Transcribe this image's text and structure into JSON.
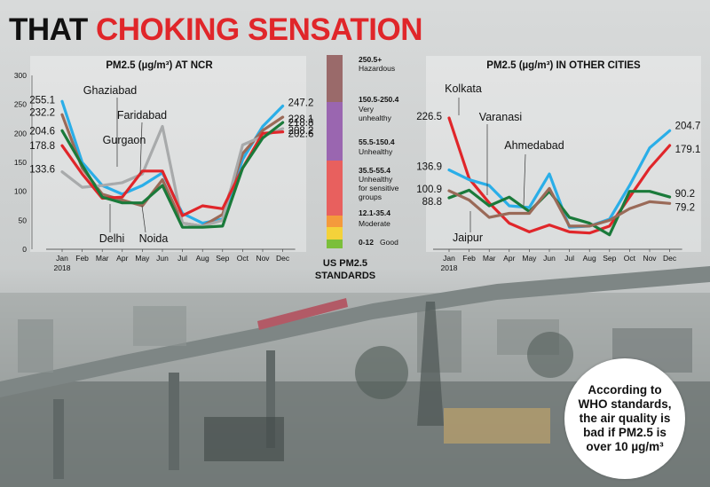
{
  "headline": {
    "part1": "THAT ",
    "part2": "CHOKING SENSATION"
  },
  "who_note": "According to WHO standards, the air quality is bad if PM2.5 is over 10 µg/m³",
  "colors": {
    "accent_red": "#e0262a",
    "background_smog": "#cdd0d0"
  },
  "chart_data": [
    {
      "type": "line",
      "title": "PM2.5 (µg/m³) AT NCR",
      "y_ticks": [
        "300",
        "250",
        "200",
        "150",
        "100",
        "50",
        "0"
      ],
      "ylim": [
        0,
        300
      ],
      "categories": [
        "Jan\n2018",
        "Feb",
        "Mar",
        "Apr",
        "May",
        "Jun",
        "Jul",
        "Aug",
        "Sep",
        "Oct",
        "Nov",
        "Dec"
      ],
      "series": [
        {
          "name": "Ghaziabad",
          "color": "#2aaee8",
          "values": [
            255.1,
            150,
            110,
            95,
            110,
            132,
            62,
            45,
            52,
            155,
            212,
            247.2
          ],
          "start_label": "255.1",
          "end_label": "247.2"
        },
        {
          "name": "Faridabad",
          "color": "#9a6a58",
          "values": [
            232.2,
            140,
            95,
            85,
            75,
            120,
            45,
            40,
            60,
            165,
            205,
            228.1
          ],
          "start_label": "232.2",
          "end_label": "228.1"
        },
        {
          "name": "Gurgaon",
          "color": "#a8aaab",
          "values": [
            133.6,
            107,
            110,
            115,
            130,
            212,
            45,
            40,
            50,
            180,
            195,
            208.2
          ],
          "start_label": "133.6",
          "end_label": "208.2"
        },
        {
          "name": "Delhi",
          "color": "#e0262a",
          "values": [
            178.8,
            130,
            88,
            90,
            135,
            135,
            58,
            75,
            70,
            140,
            200,
            202.6
          ],
          "start_label": "178.8",
          "end_label": "202.6"
        },
        {
          "name": "Noida",
          "color": "#1a7a3a",
          "values": [
            204.6,
            145,
            90,
            80,
            80,
            110,
            38,
            38,
            40,
            140,
            192,
            218.8
          ],
          "start_label": "204.6",
          "end_label": "218.8"
        }
      ],
      "annotations": [
        "Ghaziabad",
        "Faridabad",
        "Gurgaon",
        "Delhi",
        "Noida"
      ]
    },
    {
      "type": "line",
      "title": "PM2.5 (µg/m³) IN OTHER CITIES",
      "categories": [
        "Jan\n2018",
        "Feb",
        "Mar",
        "Apr",
        "May",
        "Jun",
        "Jul",
        "Aug",
        "Sep",
        "Oct",
        "Nov",
        "Dec"
      ],
      "ylim": [
        0,
        300
      ],
      "series": [
        {
          "name": "Kolkata",
          "color": "#e0262a",
          "values": [
            226.5,
            122,
            80,
            45,
            30,
            42,
            30,
            28,
            40,
            90,
            140,
            179.1
          ],
          "start_label": "226.5",
          "end_label": "179.1"
        },
        {
          "name": "Varanasi",
          "color": "#2aaee8",
          "values": [
            136.9,
            120,
            110,
            75,
            72,
            130,
            38,
            40,
            52,
            110,
            175,
            204.7
          ],
          "start_label": "136.9",
          "end_label": "204.7"
        },
        {
          "name": "Ahmedabad",
          "color": "#1a7a3a",
          "values": [
            88.8,
            102,
            75,
            90,
            65,
            100,
            55,
            45,
            25,
            100,
            100,
            90.2
          ],
          "start_label": "88.8",
          "end_label": "90.2"
        },
        {
          "name": "Jaipur",
          "color": "#9a6a58",
          "values": [
            100.9,
            85,
            55,
            62,
            62,
            105,
            40,
            40,
            50,
            70,
            82,
            79.2
          ],
          "start_label": "100.9",
          "end_label": "79.2"
        }
      ],
      "annotations": [
        "Kolkata",
        "Varanasi",
        "Ahmedabad",
        "Jaipur"
      ]
    },
    {
      "type": "bar",
      "title": "US PM2.5 STANDARDS",
      "bands": [
        {
          "range": "250.5+",
          "label": "Hazardous",
          "color": "#9a6a6a",
          "from": 250.5,
          "to": 500
        },
        {
          "range": "150.5-250.4",
          "label": "Very unhealthy",
          "color": "#9a66b0",
          "from": 150.5,
          "to": 250.4
        },
        {
          "range": "55.5-150.4",
          "label": "Unhealthy",
          "color": "#e8605e",
          "from": 55.5,
          "to": 150.4
        },
        {
          "range": "35.5-55.4",
          "label": "Unhealthy for sensitive groups",
          "color": "#f49a3c",
          "from": 35.5,
          "to": 55.4
        },
        {
          "range": "12.1-35.4",
          "label": "Moderate",
          "color": "#f4d23a",
          "from": 12.1,
          "to": 35.4
        },
        {
          "range": "0-12",
          "label": "Good",
          "color": "#7bbf3a",
          "from": 0,
          "to": 12
        }
      ]
    }
  ]
}
